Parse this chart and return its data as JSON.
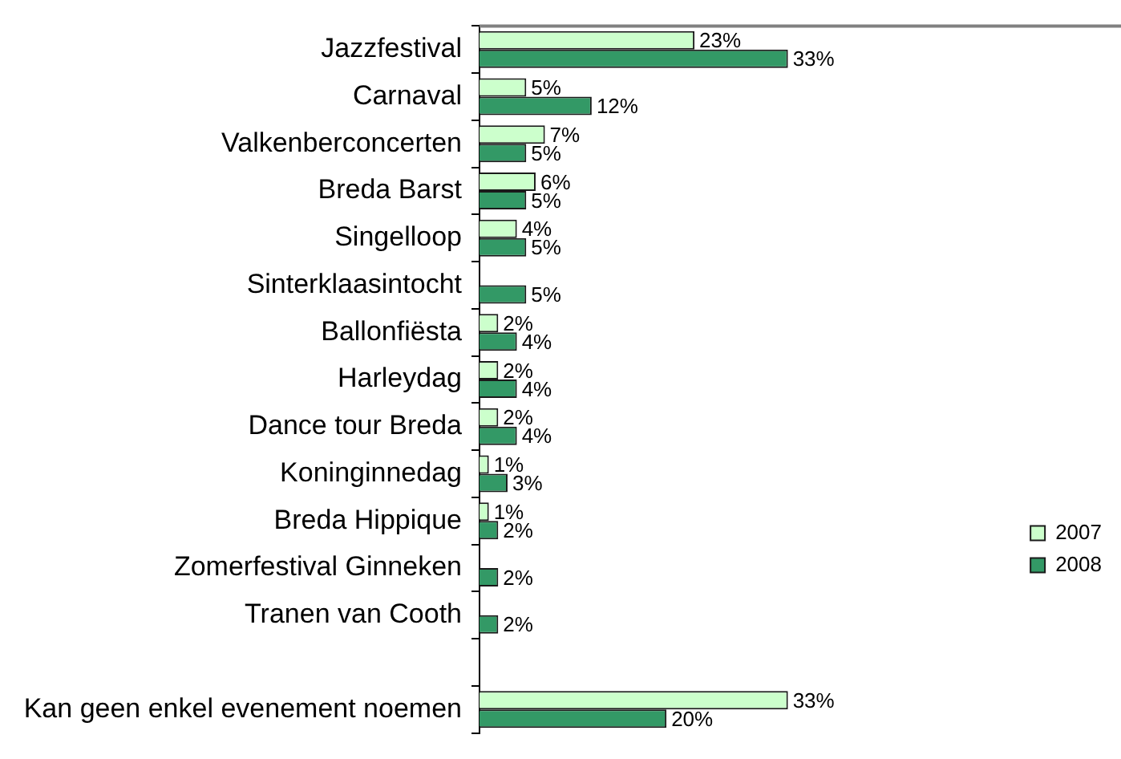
{
  "chart_data": {
    "type": "bar",
    "orientation": "horizontal",
    "categories": [
      "Jazzfestival",
      "Carnaval",
      "Valkenberconcerten",
      "Breda Barst",
      "Singelloop",
      "Sinterklaasintocht",
      "Ballonfiësta",
      "Harleydag",
      "Dance tour Breda",
      "Koninginnedag",
      "Breda Hippique",
      "Zomerfestival Ginneken",
      "Tranen van Cooth",
      null,
      "Kan geen enkel evenement noemen"
    ],
    "series": [
      {
        "name": "2007",
        "color": "#ccffcc",
        "values": [
          23,
          5,
          7,
          6,
          4,
          null,
          2,
          2,
          2,
          1,
          1,
          null,
          null,
          null,
          33
        ],
        "value_labels": [
          "23%",
          "5%",
          "7%",
          "6%",
          "4%",
          null,
          "2%",
          "2%",
          "2%",
          "1%",
          "1%",
          null,
          null,
          null,
          "33%"
        ]
      },
      {
        "name": "2008",
        "color": "#339966",
        "values": [
          33,
          12,
          5,
          5,
          5,
          5,
          4,
          4,
          4,
          3,
          2,
          2,
          2,
          null,
          20
        ],
        "value_labels": [
          "33%",
          "12%",
          "5%",
          "5%",
          "5%",
          "5%",
          "4%",
          "4%",
          "4%",
          "3%",
          "2%",
          "2%",
          "2%",
          null,
          "20%"
        ]
      }
    ],
    "legend": "right",
    "grid": false,
    "tick_labels": "y"
  }
}
